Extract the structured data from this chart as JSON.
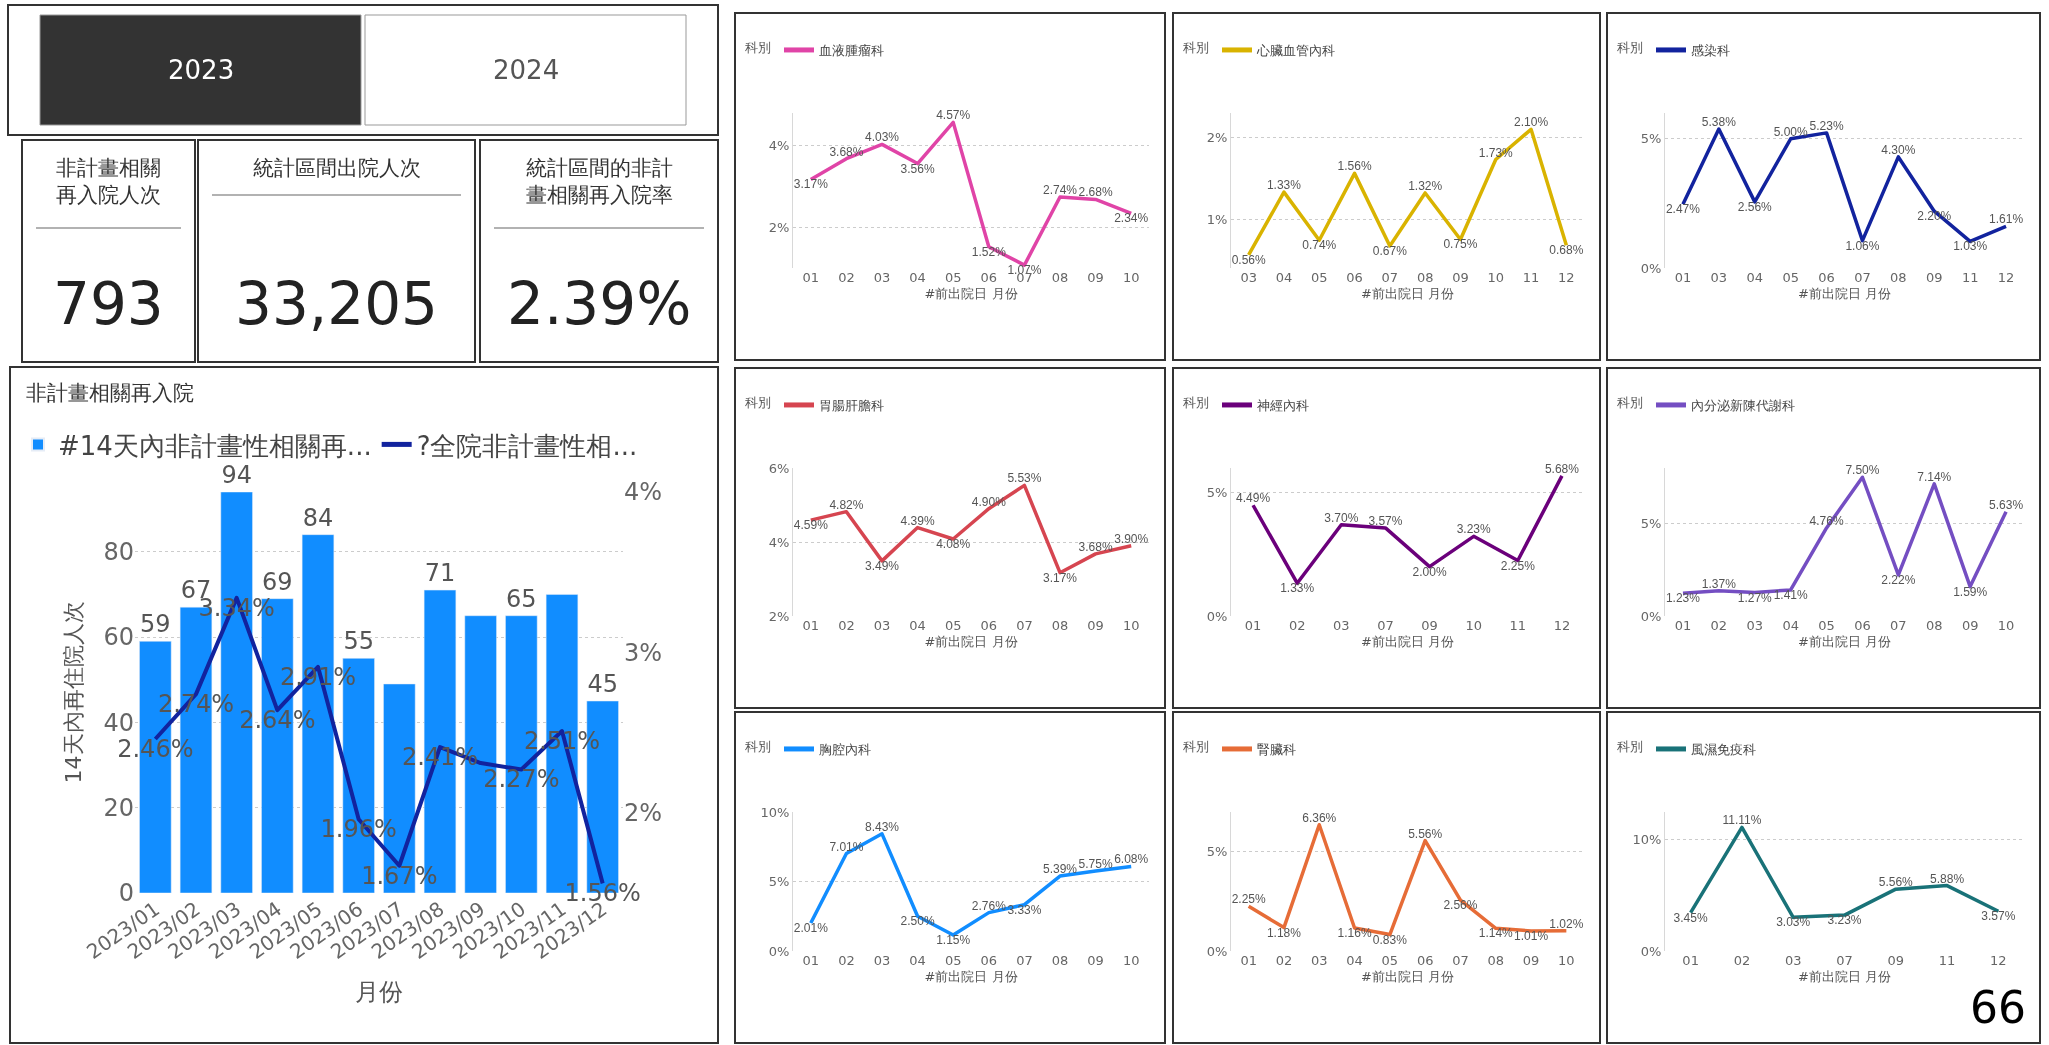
{
  "chart_data": [
    {
      "type": "other",
      "categories": [
        "2023",
        "2024"
      ],
      "colors": [
        "#333333",
        "#ffffff"
      ]
    },
    {
      "type": "other",
      "title": "非計畫相關再入院人次",
      "annotations": [
        "793"
      ]
    },
    {
      "type": "other",
      "title": "統計區間出院人次",
      "annotations": [
        "33,205"
      ]
    },
    {
      "type": "other",
      "title": "統計區間的非計畫相關再入院率",
      "annotations": [
        "2.39%"
      ]
    },
    {
      "type": "bar",
      "title": "非計畫相關再入院",
      "xlabel": "月份",
      "ylabel": "14天內再住院人次",
      "legend": "top left",
      "grid": "y",
      "categories": [
        "2023/01",
        "2023/02",
        "2023/03",
        "2023/04",
        "2023/05",
        "2023/06",
        "2023/07",
        "2023/08",
        "2023/09",
        "2023/10",
        "2023/11",
        "2023/12"
      ],
      "ylim": [
        0,
        94
      ],
      "yticks": [
        0,
        20,
        40,
        60,
        80
      ],
      "y2lim": [
        1.5,
        4.0
      ],
      "y2ticks": [
        {
          "value": 2,
          "label": "2%"
        },
        {
          "value": 3,
          "label": "3%"
        },
        {
          "value": 4,
          "label": "4%"
        }
      ],
      "series": [
        {
          "name": "#14天內非計畫性相關再...",
          "color": "#118dff",
          "values": [
            59,
            67,
            94,
            69,
            84,
            55,
            49,
            71,
            65,
            65,
            70,
            45
          ],
          "value_labels": [
            "59",
            "67",
            "94",
            "69",
            "84",
            "55",
            null,
            "71",
            null,
            "65",
            null,
            "45"
          ]
        },
        {
          "name": "?全院非計畫性相...",
          "type": "line",
          "axis": "y2",
          "color": "#12239e",
          "values": [
            2.46,
            2.74,
            3.34,
            2.64,
            2.91,
            1.96,
            1.67,
            2.41,
            2.31,
            2.27,
            2.51,
            1.56
          ],
          "value_labels": [
            "2.46%",
            "2.74%",
            "3.34%",
            "2.64%",
            "2.91%",
            "1.96%",
            "1.67%",
            "2.41%",
            null,
            "2.27%",
            "2.51%",
            "1.56%"
          ]
        }
      ]
    },
    {
      "type": "line",
      "legend_title": "科別",
      "legend": "top left",
      "xlabel": "#前出院日 月份",
      "grid": "y",
      "categories": [
        "01",
        "02",
        "03",
        "04",
        "05",
        "06",
        "07",
        "08",
        "09",
        "10"
      ],
      "ylim": [
        1,
        4.8
      ],
      "yticks": [
        {
          "value": 2,
          "label": "2%"
        },
        {
          "value": 4,
          "label": "4%"
        }
      ],
      "series": [
        {
          "name": "血液腫瘤科",
          "color": "#e044a7",
          "values": [
            3.17,
            3.68,
            4.03,
            3.56,
            4.57,
            1.52,
            1.07,
            2.74,
            2.68,
            2.34
          ],
          "value_labels": [
            "3.17%",
            "3.68%",
            "4.03%",
            "3.56%",
            "4.57%",
            "1.52%",
            "1.07%",
            "2.74%",
            "2.68%",
            "2.34%"
          ]
        }
      ]
    },
    {
      "type": "line",
      "legend_title": "科別",
      "legend": "top left",
      "xlabel": "#前出院日 月份",
      "grid": "y",
      "categories": [
        "03",
        "04",
        "05",
        "06",
        "07",
        "08",
        "09",
        "10",
        "11",
        "12"
      ],
      "ylim": [
        0.4,
        2.3
      ],
      "yticks": [
        {
          "value": 1,
          "label": "1%"
        },
        {
          "value": 2,
          "label": "2%"
        }
      ],
      "series": [
        {
          "name": "心臟血管內科",
          "color": "#d9b300",
          "values": [
            0.56,
            1.33,
            0.74,
            1.56,
            0.67,
            1.32,
            0.75,
            1.73,
            2.1,
            0.68
          ],
          "value_labels": [
            "0.56%",
            "1.33%",
            "0.74%",
            "1.56%",
            "0.67%",
            "1.32%",
            "0.75%",
            "1.73%",
            "2.10%",
            "0.68%"
          ]
        }
      ]
    },
    {
      "type": "line",
      "legend_title": "科別",
      "legend": "top left",
      "xlabel": "#前出院日 月份",
      "grid": "y",
      "categories": [
        "01",
        "03",
        "04",
        "05",
        "06",
        "07",
        "08",
        "09",
        "11",
        "12"
      ],
      "ylim": [
        0,
        6
      ],
      "yticks": [
        {
          "value": 0,
          "label": "0%"
        },
        {
          "value": 5,
          "label": "5%"
        }
      ],
      "series": [
        {
          "name": "感染科",
          "color": "#12239e",
          "values": [
            2.47,
            5.38,
            2.56,
            5.0,
            5.23,
            1.06,
            4.3,
            2.2,
            1.03,
            1.61
          ],
          "value_labels": [
            "2.47%",
            "5.38%",
            "2.56%",
            "5.00%",
            "5.23%",
            "1.06%",
            "4.30%",
            "2.20%",
            "1.03%",
            "1.61%"
          ]
        }
      ]
    },
    {
      "type": "line",
      "legend_title": "科別",
      "legend": "top left",
      "xlabel": "#前出院日 月份",
      "grid": "y",
      "categories": [
        "01",
        "02",
        "03",
        "04",
        "05",
        "06",
        "07",
        "08",
        "09",
        "10"
      ],
      "ylim": [
        2,
        6
      ],
      "yticks": [
        {
          "value": 2,
          "label": "2%"
        },
        {
          "value": 4,
          "label": "4%"
        },
        {
          "value": 6,
          "label": "6%"
        }
      ],
      "series": [
        {
          "name": "胃腸肝膽科",
          "color": "#d64550",
          "values": [
            4.59,
            4.82,
            3.49,
            4.39,
            4.08,
            4.9,
            5.53,
            3.17,
            3.68,
            3.9
          ],
          "value_labels": [
            "4.59%",
            "4.82%",
            "3.49%",
            "4.39%",
            "4.08%",
            "4.90%",
            "5.53%",
            "3.17%",
            "3.68%",
            "3.90%"
          ]
        }
      ]
    },
    {
      "type": "line",
      "legend_title": "科別",
      "legend": "top left",
      "xlabel": "#前出院日 月份",
      "grid": "y",
      "categories": [
        "01",
        "02",
        "03",
        "07",
        "09",
        "10",
        "11",
        "12"
      ],
      "ylim": [
        0,
        6
      ],
      "yticks": [
        {
          "value": 0,
          "label": "0%"
        },
        {
          "value": 5,
          "label": "5%"
        }
      ],
      "series": [
        {
          "name": "神經內科",
          "color": "#6b007b",
          "values": [
            4.49,
            1.33,
            3.7,
            3.57,
            2.0,
            3.23,
            2.25,
            5.68
          ],
          "value_labels": [
            "4.49%",
            "1.33%",
            "3.70%",
            "3.57%",
            "2.00%",
            "3.23%",
            "2.25%",
            "5.68%"
          ]
        }
      ]
    },
    {
      "type": "line",
      "legend_title": "科別",
      "legend": "top left",
      "xlabel": "#前出院日 月份",
      "grid": "y",
      "categories": [
        "01",
        "02",
        "03",
        "04",
        "05",
        "06",
        "07",
        "08",
        "09",
        "10"
      ],
      "ylim": [
        0,
        8
      ],
      "yticks": [
        {
          "value": 0,
          "label": "0%"
        },
        {
          "value": 5,
          "label": "5%"
        }
      ],
      "series": [
        {
          "name": "內分泌新陳代謝科",
          "color": "#744ec2",
          "values": [
            1.23,
            1.37,
            1.27,
            1.41,
            4.76,
            7.5,
            2.22,
            7.14,
            1.59,
            5.63
          ],
          "value_labels": [
            "1.23%",
            "1.37%",
            "1.27%",
            "1.41%",
            "4.76%",
            "7.50%",
            "2.22%",
            "7.14%",
            "1.59%",
            "5.63%"
          ]
        }
      ]
    },
    {
      "type": "line",
      "legend_title": "科別",
      "legend": "top left",
      "xlabel": "#前出院日 月份",
      "grid": "y",
      "categories": [
        "01",
        "02",
        "03",
        "04",
        "05",
        "06",
        "07",
        "08",
        "09",
        "10"
      ],
      "ylim": [
        0,
        10
      ],
      "yticks": [
        {
          "value": 0,
          "label": "0%"
        },
        {
          "value": 5,
          "label": "5%"
        },
        {
          "value": 10,
          "label": "10%"
        }
      ],
      "series": [
        {
          "name": "胸腔內科",
          "color": "#118dff",
          "values": [
            2.01,
            7.01,
            8.43,
            2.5,
            1.15,
            2.76,
            3.33,
            5.39,
            5.75,
            6.08
          ],
          "value_labels": [
            "2.01%",
            "7.01%",
            "8.43%",
            "2.50%",
            "1.15%",
            "2.76%",
            "3.33%",
            "5.39%",
            "5.75%",
            "6.08%"
          ]
        }
      ]
    },
    {
      "type": "line",
      "legend_title": "科別",
      "legend": "top left",
      "xlabel": "#前出院日 月份",
      "grid": "y",
      "categories": [
        "01",
        "02",
        "03",
        "04",
        "05",
        "06",
        "07",
        "08",
        "09",
        "10"
      ],
      "ylim": [
        0,
        7
      ],
      "yticks": [
        {
          "value": 0,
          "label": "0%"
        },
        {
          "value": 5,
          "label": "5%"
        }
      ],
      "series": [
        {
          "name": "腎臟科",
          "color": "#e66c37",
          "values": [
            2.25,
            1.18,
            6.36,
            1.16,
            0.83,
            5.56,
            2.56,
            1.14,
            1.01,
            1.02
          ],
          "value_labels": [
            "2.25%",
            "1.18%",
            "6.36%",
            "1.16%",
            "0.83%",
            "5.56%",
            "2.56%",
            "1.14%",
            "1.01%",
            "1.02%"
          ]
        }
      ]
    },
    {
      "type": "line",
      "legend_title": "科別",
      "legend": "top left",
      "xlabel": "#前出院日 月份",
      "grid": "y",
      "categories": [
        "01",
        "02",
        "03",
        "07",
        "09",
        "11",
        "12"
      ],
      "ylim": [
        0,
        12.5
      ],
      "yticks": [
        {
          "value": 0,
          "label": "0%"
        },
        {
          "value": 10,
          "label": "10%"
        }
      ],
      "annotations": [
        "66"
      ],
      "series": [
        {
          "name": "風濕免疫科",
          "color": "#197278",
          "values": [
            3.45,
            11.11,
            3.03,
            3.23,
            5.56,
            5.88,
            3.57
          ],
          "value_labels": [
            "3.45%",
            "11.11%",
            "3.03%",
            "3.23%",
            "5.56%",
            "5.88%",
            "3.57%"
          ]
        }
      ]
    }
  ]
}
